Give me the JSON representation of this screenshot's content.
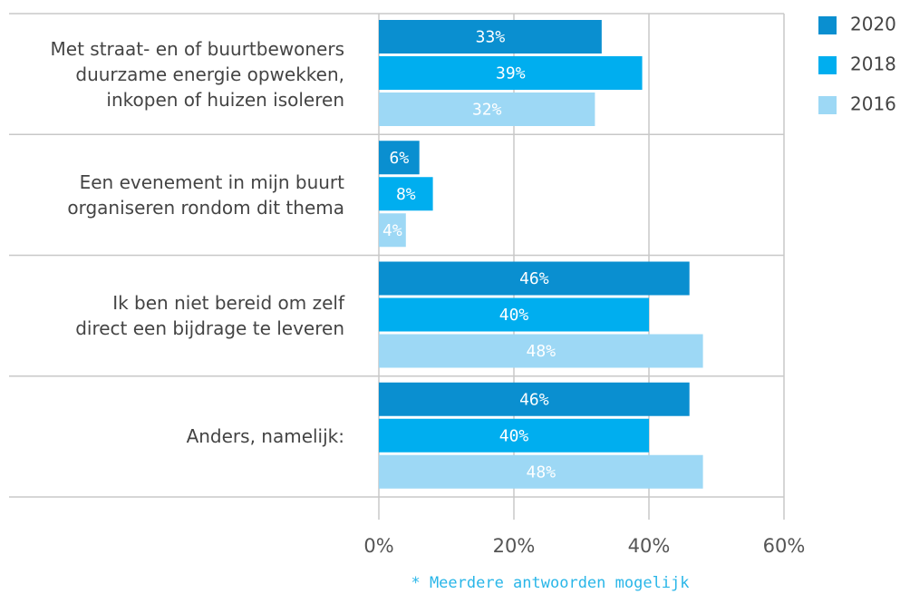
{
  "chart_data": {
    "type": "hbar",
    "categories": [
      "Met straat- en of buurtbewoners\nduurzame energie opwekken,\ninkopen of huizen isoleren",
      "Een evenement in mijn buurt\norganiseren rondom dit thema",
      "Ik ben niet bereid om zelf\ndirect een bijdrage te leveren",
      "Anders, namelijk:"
    ],
    "series": [
      {
        "name": "2020",
        "color": "#0a8fd0",
        "values": [
          33,
          6,
          46,
          46
        ],
        "value_labels": [
          "33%",
          "6%",
          "46%",
          "46%"
        ]
      },
      {
        "name": "2018",
        "color": "#00aeef",
        "values": [
          39,
          8,
          40,
          40
        ],
        "value_labels": [
          "39%",
          "8%",
          "40%",
          "40%"
        ]
      },
      {
        "name": "2016",
        "color": "#9dd8f5",
        "values": [
          32,
          4,
          48,
          48
        ],
        "value_labels": [
          "32%",
          "4%",
          "48%",
          "48%"
        ]
      }
    ],
    "xlim": [
      0,
      60
    ],
    "xticks": [
      {
        "value": 0,
        "label": "0%"
      },
      {
        "value": 20,
        "label": "20%"
      },
      {
        "value": 40,
        "label": "40%"
      },
      {
        "value": 60,
        "label": "60%"
      }
    ],
    "grid": true,
    "legend": "top-right",
    "footnote": "* Meerdere antwoorden mogelijk"
  }
}
